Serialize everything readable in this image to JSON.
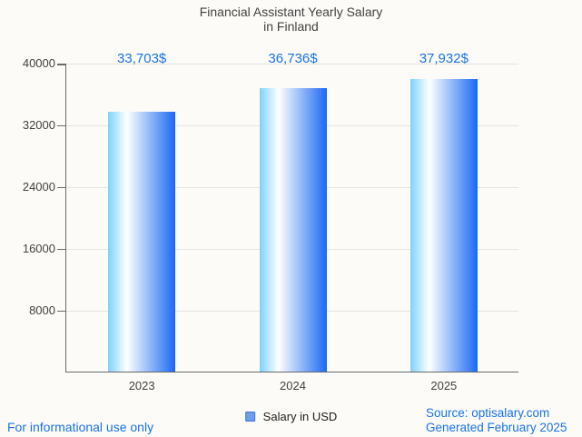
{
  "header": {
    "title_line1": "Financial Assistant Yearly Salary",
    "title_line2": "in Finland"
  },
  "chart_data": {
    "type": "bar",
    "title": "Financial Assistant Yearly Salary in Finland",
    "categories": [
      "2023",
      "2024",
      "2025"
    ],
    "series": [
      {
        "name": "Salary in USD",
        "values": [
          33703,
          36736,
          37932
        ]
      }
    ],
    "value_labels": [
      "33,703$",
      "36,736$",
      "37,932$"
    ],
    "xlabel": "",
    "ylabel": "",
    "ylim": [
      0,
      40000
    ],
    "yticks": [
      8000,
      16000,
      24000,
      32000,
      40000
    ],
    "ytick_labels": [
      "8000",
      "16000",
      "24000",
      "32000",
      "40000"
    ],
    "grid": true,
    "legend_position": "bottom"
  },
  "legend": {
    "label": "Salary in USD",
    "swatch_fill": "#6d9eeb",
    "swatch_border": "#3c78d8"
  },
  "footer": {
    "left_note": "For informational use only",
    "source_line1": "Source: optisalary.com",
    "source_line2": "Generated February 2025"
  },
  "colors": {
    "accent_blue": "#1a73e8",
    "title_text": "#424242",
    "axis_text": "#424242",
    "axis_line": "#696969",
    "gridline": "#e4e4e4",
    "background": "#fcfbf7",
    "bar_gradient": [
      "#7dd2fb",
      "#ffffff",
      "#1b69f4"
    ],
    "bar_gradient_stops": [
      0,
      28,
      100
    ]
  }
}
